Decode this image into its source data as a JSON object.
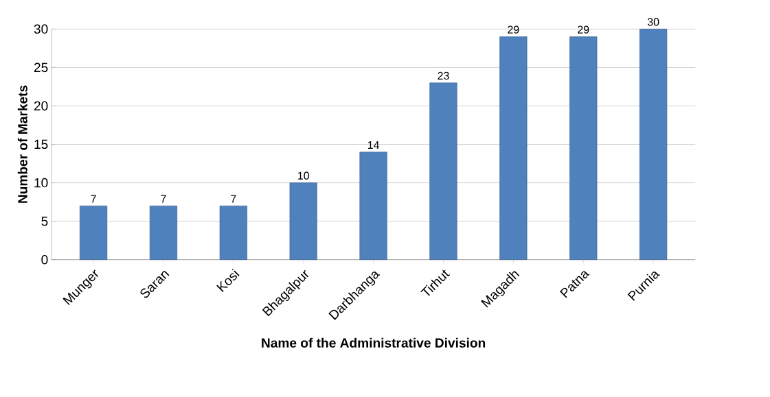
{
  "chart_data": {
    "type": "bar",
    "xlabel": "Name of the Administrative Division",
    "ylabel": "Number of Markets",
    "categories": [
      "Munger",
      "Saran",
      "Kosi",
      "Bhagalpur",
      "Darbhanga",
      "Tirhut",
      "Magadh",
      "Patna",
      "Purnia"
    ],
    "values": [
      7,
      7,
      7,
      10,
      14,
      23,
      29,
      29,
      30
    ],
    "color": "#4f81bd",
    "ylim": [
      0,
      30
    ],
    "yticks": [
      0,
      5,
      10,
      15,
      20,
      25,
      30
    ],
    "grid": "y",
    "data_labels": true
  }
}
